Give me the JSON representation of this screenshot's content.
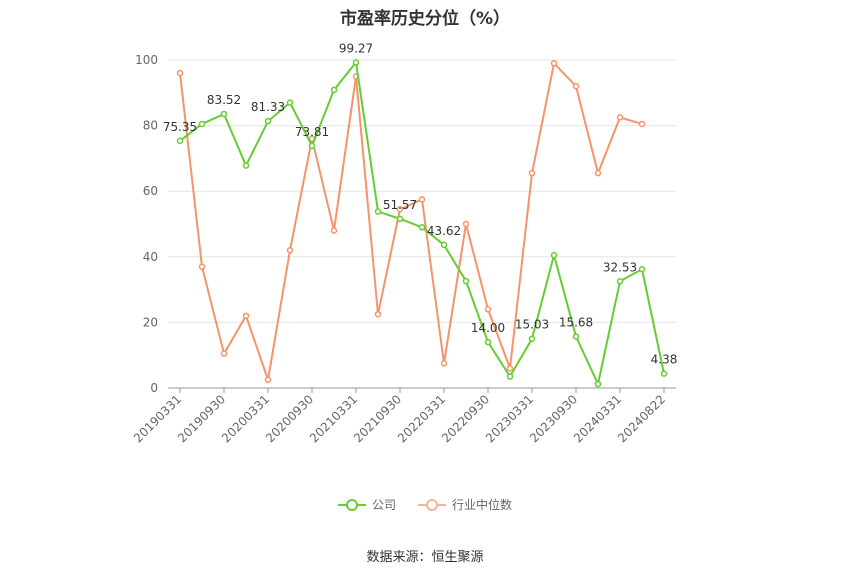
{
  "chart_data": {
    "type": "line",
    "title": "市盈率历史分位（%）",
    "source": "数据来源：恒生聚源",
    "ylim": [
      0,
      100
    ],
    "yticks": [
      "0",
      "20",
      "40",
      "60",
      "80",
      "100"
    ],
    "xtick_labels": [
      "20190331",
      "20190930",
      "20200331",
      "20200930",
      "20210331",
      "20210930",
      "20220331",
      "20220930",
      "20230331",
      "20230930",
      "20240331",
      "20240822"
    ],
    "grid": true,
    "legend_position": "bottom",
    "series": [
      {
        "name": "公司",
        "color": "#66cc33",
        "values": [
          75.35,
          80.5,
          83.52,
          67.8,
          81.33,
          87.0,
          73.81,
          90.9,
          99.27,
          53.8,
          51.57,
          49.0,
          43.62,
          32.6,
          14.0,
          3.5,
          15.03,
          40.5,
          15.68,
          1.2,
          32.53,
          36.2,
          4.38
        ],
        "labels": [
          "75.35",
          "",
          "83.52",
          "",
          "81.33",
          "",
          "73.81",
          "",
          "99.27",
          "",
          "51.57",
          "",
          "43.62",
          "",
          "14.00",
          "",
          "15.03",
          "",
          "15.68",
          "",
          "32.53",
          "",
          "4.38"
        ]
      },
      {
        "name": "行业中位数",
        "color": "#f5936a",
        "values": [
          96.0,
          37.0,
          10.5,
          22.0,
          2.5,
          42.0,
          76.0,
          48.0,
          95.0,
          22.5,
          54.5,
          57.5,
          7.5,
          50.0,
          24.0,
          6.0,
          65.5,
          99.0,
          92.0,
          65.5,
          82.5,
          80.5,
          null
        ]
      }
    ]
  }
}
